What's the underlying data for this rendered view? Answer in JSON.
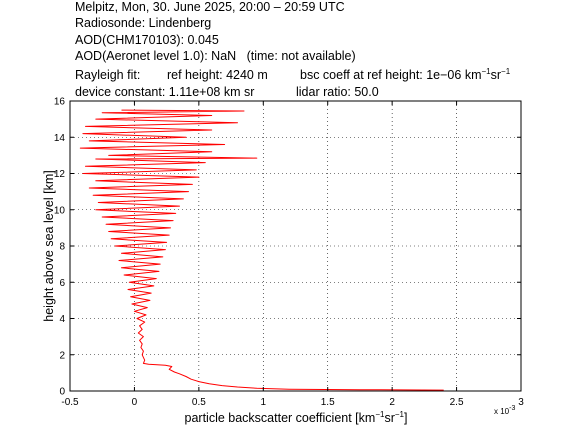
{
  "header": {
    "line1": "Melpitz, Mon, 30. June 2025, 20:00 – 20:59 UTC",
    "line2": "Radiosonde: Lindenberg",
    "line3": "AOD(CHM170103): 0.045",
    "line4": "AOD(Aeronet level 1.0): NaN   (time: not available)",
    "rayleigh_label": "Rayleigh fit:",
    "ref_height": "ref height: 4240 m",
    "bsc_coeff_prefix": "bsc coeff at ref height: 1e−06 km",
    "sup_minus1_a": "−1",
    "sr_unit": "sr",
    "sup_minus1_b": "−1",
    "device_constant": "device constant: 1.11e+08 km sr",
    "lidar_ratio": "lidar ratio: 50.0"
  },
  "axes": {
    "x_label_prefix": "particle backscatter coefficient [km",
    "x_sup_1": "−1",
    "x_label_mid": "sr",
    "x_sup_2": "−1",
    "x_label_suffix": "]",
    "x_multiplier": "x 10",
    "x_multiplier_exp": "-3",
    "y_label": "height above sea level [km]"
  },
  "chart_data": {
    "type": "line",
    "xlim": [
      -0.0005,
      0.003
    ],
    "ylim": [
      0,
      16
    ],
    "x_ticks": [
      -0.0005,
      0,
      0.0005,
      0.001,
      0.0015,
      0.002,
      0.0025,
      0.003
    ],
    "x_tick_labels": [
      "-0.5",
      "0",
      "0.5",
      "1",
      "1.5",
      "2",
      "2.5",
      "3"
    ],
    "y_ticks": [
      0,
      2,
      4,
      6,
      8,
      10,
      12,
      14,
      16
    ],
    "y_tick_labels": [
      "0",
      "2",
      "4",
      "6",
      "8",
      "10",
      "12",
      "14",
      "16"
    ],
    "grid": true,
    "line_color": "#ff0000",
    "series": [
      {
        "points": [
          [
            0.0024,
            0.05
          ],
          [
            0.00175,
            0.07
          ],
          [
            0.0012,
            0.1
          ],
          [
            0.00095,
            0.15
          ],
          [
            0.0008,
            0.22
          ],
          [
            0.00068,
            0.3
          ],
          [
            0.00058,
            0.4
          ],
          [
            0.0005,
            0.52
          ],
          [
            0.00044,
            0.65
          ],
          [
            0.0004,
            0.8
          ],
          [
            0.00035,
            0.95
          ],
          [
            0.00031,
            1.05
          ],
          [
            0.00027,
            1.2
          ],
          [
            0.00029,
            1.35
          ],
          [
            0.00024,
            1.42
          ],
          [
            0.00011,
            1.48
          ],
          [
            7e-05,
            1.52
          ],
          [
            8e-05,
            1.7
          ],
          [
            6e-05,
            2.0
          ],
          [
            7e-05,
            2.2
          ],
          [
            5e-05,
            2.4
          ],
          [
            6e-05,
            2.6
          ],
          [
            4e-05,
            2.8
          ],
          [
            7e-05,
            3.0
          ],
          [
            3e-05,
            3.2
          ],
          [
            6e-05,
            3.4
          ],
          [
            4e-05,
            3.6
          ],
          [
            8e-05,
            3.8
          ],
          [
            2e-05,
            4.0
          ],
          [
            9e-05,
            4.2
          ],
          [
            0.0,
            4.4
          ],
          [
            0.0001,
            4.6
          ],
          [
            -2e-05,
            4.8
          ],
          [
            0.00012,
            5.0
          ],
          [
            -3e-05,
            5.2
          ],
          [
            0.00013,
            5.4
          ],
          [
            -5e-05,
            5.6
          ],
          [
            0.00015,
            5.8
          ],
          [
            -4e-05,
            6.0
          ],
          [
            0.00017,
            6.2
          ],
          [
            -8e-05,
            6.4
          ],
          [
            0.00019,
            6.6
          ],
          [
            -0.0001,
            6.8
          ],
          [
            0.0002,
            7.0
          ],
          [
            -0.00012,
            7.2
          ],
          [
            0.00022,
            7.4
          ],
          [
            -0.0001,
            7.6
          ],
          [
            0.00024,
            7.8
          ],
          [
            -0.00015,
            8.0
          ],
          [
            0.00025,
            8.2
          ],
          [
            -0.00018,
            8.4
          ],
          [
            0.00027,
            8.6
          ],
          [
            -0.0002,
            8.8
          ],
          [
            0.00028,
            9.0
          ],
          [
            -0.00022,
            9.2
          ],
          [
            0.0003,
            9.4
          ],
          [
            -0.00025,
            9.6
          ],
          [
            0.00032,
            9.8
          ],
          [
            -0.0003,
            10.0
          ],
          [
            0.00035,
            10.2
          ],
          [
            -0.00028,
            10.4
          ],
          [
            0.00038,
            10.6
          ],
          [
            -0.00032,
            10.8
          ],
          [
            0.00042,
            11.0
          ],
          [
            -0.00035,
            11.2
          ],
          [
            0.00045,
            11.4
          ],
          [
            -0.0003,
            11.6
          ],
          [
            0.0005,
            11.8
          ],
          [
            -0.0004,
            12.0
          ],
          [
            0.00048,
            12.2
          ],
          [
            -0.00038,
            12.4
          ],
          [
            0.00055,
            12.6
          ],
          [
            -0.0003,
            12.8
          ],
          [
            0.00095,
            12.85
          ],
          [
            -0.0002,
            13.0
          ],
          [
            0.0006,
            13.2
          ],
          [
            -0.00042,
            13.4
          ],
          [
            0.0007,
            13.6
          ],
          [
            -0.00035,
            13.8
          ],
          [
            0.0004,
            14.0
          ],
          [
            -0.0004,
            14.2
          ],
          [
            0.0006,
            14.4
          ],
          [
            -0.00038,
            14.6
          ],
          [
            0.0008,
            14.8
          ],
          [
            -0.0003,
            15.0
          ],
          [
            0.0006,
            15.2
          ],
          [
            -0.00025,
            15.35
          ],
          [
            0.00085,
            15.45
          ],
          [
            -0.0001,
            15.5
          ]
        ]
      }
    ]
  }
}
